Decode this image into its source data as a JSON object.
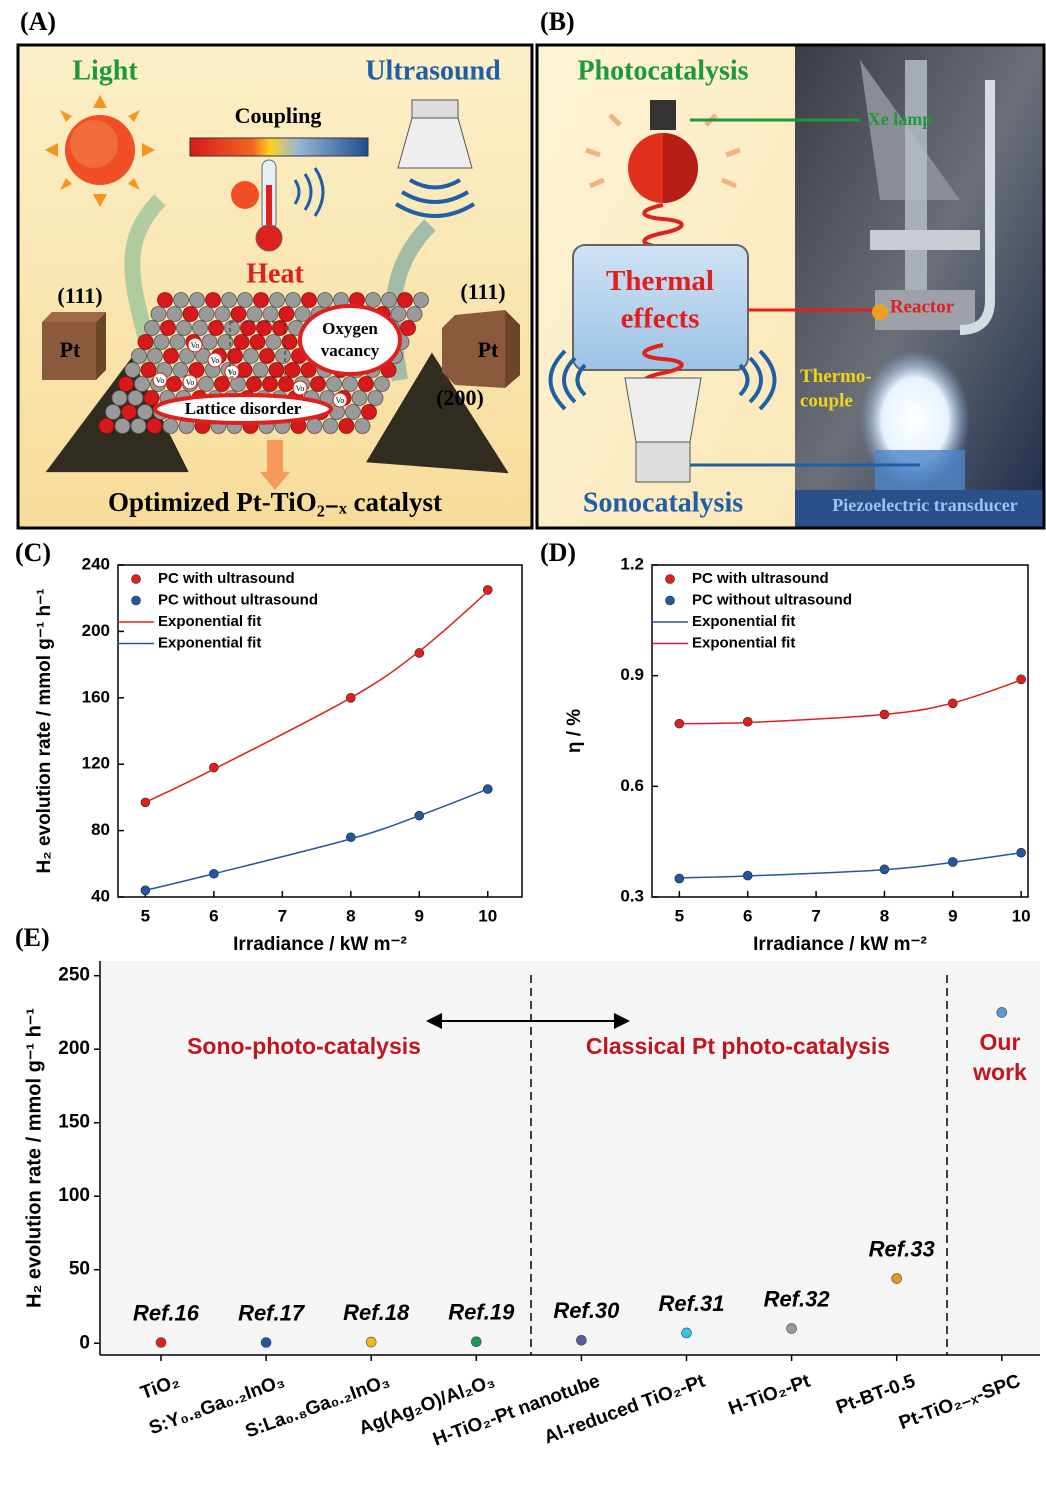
{
  "diagram_a": {
    "label": "(A)",
    "light": "Light",
    "ultrasound": "Ultrasound",
    "coupling": "Coupling",
    "heat": "Heat",
    "left_facet": "(111)",
    "left_cube": "Pt",
    "right_facet_top": "(111)",
    "right_cube": "Pt",
    "right_facet_bottom": "(200)",
    "oxygen_vacancy": "Oxygen vacancy",
    "vacancy_symbol": "Vo",
    "lattice_disorder": "Lattice disorder",
    "caption": "Optimized Pt-TiO₂₋ₓ catalyst"
  },
  "diagram_b": {
    "label": "(B)",
    "photocatalysis": "Photocatalysis",
    "thermal_effects": "Thermal effects",
    "sonocatalysis": "Sonocatalysis",
    "xe_lamp": "Xe lamp",
    "reactor": "Reactor",
    "thermocouple": "Thermo- couple",
    "transducer": "Piezoelectric transducer"
  },
  "chart_data": [
    {
      "type": "line",
      "label": "(C)",
      "x": [
        5,
        6,
        8,
        9,
        10
      ],
      "xlabel": "Irradiance / kW m⁻²",
      "ylabel": "H₂ evolution rate / mmol g⁻¹ h⁻¹",
      "xlim": [
        4.6,
        10.5
      ],
      "ylim": [
        40,
        240
      ],
      "xticks": [
        5,
        6,
        7,
        8,
        9,
        10
      ],
      "yticks": [
        40,
        80,
        120,
        160,
        200,
        240
      ],
      "legend": "upper left",
      "series": [
        {
          "name": "PC with ultrasound",
          "color": "#e0201c",
          "marker": true,
          "values": [
            97,
            118,
            160,
            187,
            225
          ]
        },
        {
          "name": "PC without ultrasound",
          "color": "#23579e",
          "marker": true,
          "values": [
            44,
            54,
            76,
            89,
            105
          ]
        },
        {
          "name": "Exponential fit",
          "color": "#e0201c",
          "marker": false,
          "values": [
            97,
            117,
            160,
            188,
            224
          ]
        },
        {
          "name": "Exponential fit",
          "color": "#23579e",
          "marker": false,
          "values": [
            44,
            54,
            75,
            89,
            105
          ]
        }
      ]
    },
    {
      "type": "line",
      "label": "(D)",
      "x": [
        5,
        6,
        8,
        9,
        10
      ],
      "xlabel": "Irradiance / kW m⁻²",
      "ylabel": "η / %",
      "xlim": [
        4.6,
        10.1
      ],
      "ylim": [
        0.3,
        1.2
      ],
      "xticks": [
        5,
        6,
        7,
        8,
        9,
        10
      ],
      "yticks": [
        0.3,
        0.6,
        0.9,
        1.2
      ],
      "legend": "upper left",
      "series": [
        {
          "name": "PC with ultrasound",
          "color": "#e0201c",
          "marker": true,
          "values": [
            0.77,
            0.775,
            0.795,
            0.825,
            0.89
          ]
        },
        {
          "name": "PC without ultrasound",
          "color": "#23579e",
          "marker": true,
          "values": [
            0.35,
            0.358,
            0.375,
            0.395,
            0.42
          ]
        },
        {
          "name": "Exponential fit",
          "color": "#23579e",
          "marker": false,
          "values": [
            0.352,
            0.357,
            0.374,
            0.394,
            0.42
          ]
        },
        {
          "name": "Exponential fit",
          "color": "#e0201c",
          "marker": false,
          "values": [
            0.77,
            0.773,
            0.795,
            0.826,
            0.888
          ]
        }
      ]
    },
    {
      "type": "scatter",
      "label": "(E)",
      "ylabel": "H₂ evolution rate / mmol g⁻¹ h⁻¹",
      "ylim": [
        -8,
        260
      ],
      "yticks": [
        0,
        50,
        100,
        150,
        200,
        250
      ],
      "categories": [
        "TiO₂",
        "S:Y₀.₈Ga₀.₂InO₃",
        "S:La₀.₈Ga₀.₂InO₃",
        "Ag(Ag₂O)/Al₂O₃",
        "H-TiO₂-Pt nanotube",
        "Al-reduced TiO₂-Pt",
        "H-TiO₂-Pt",
        "Pt-BT-0.5",
        "Pt-TiO₂₋ₓ-SPC"
      ],
      "values": [
        0.5,
        0.5,
        0.8,
        1,
        2,
        7,
        10,
        44,
        225
      ],
      "colors": [
        "#e0201c",
        "#23579e",
        "#f2b81c",
        "#1a9a55",
        "#5a5aa0",
        "#2ec4ee",
        "#999999",
        "#e69a1a",
        "#5b9bd5"
      ],
      "point_labels": [
        "Ref.16",
        "Ref.17",
        "Ref.18",
        "Ref.19",
        "Ref.30",
        "Ref.31",
        "Ref.32",
        "Ref.33",
        null
      ],
      "annotations": [
        "Sono-photo-catalysis",
        "Classical Pt photo-catalysis",
        "Our work"
      ]
    }
  ]
}
